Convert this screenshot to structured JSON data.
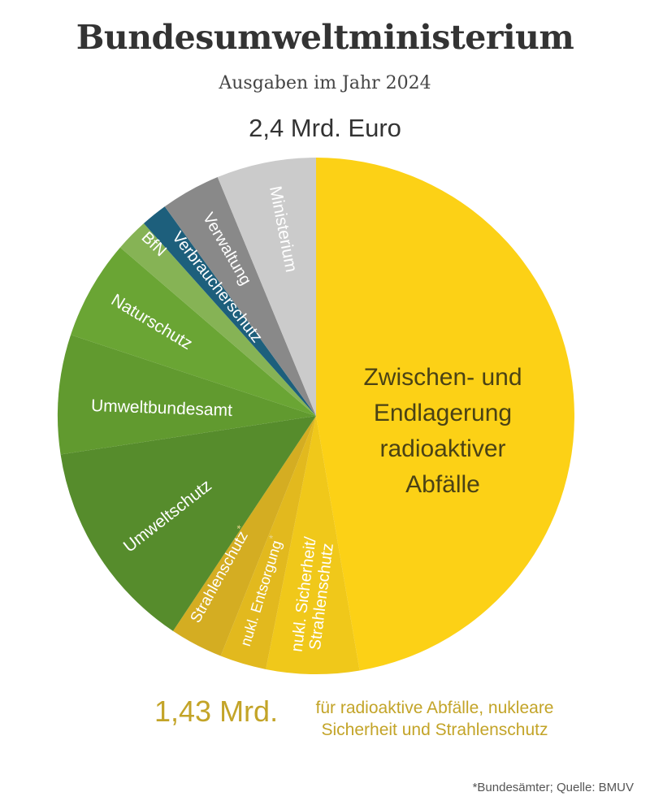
{
  "header": {
    "title": "Bundesumweltministerium",
    "subtitle": "Ausgaben im Jahr 2024",
    "total": "2,4 Mrd. Euro"
  },
  "footer": {
    "amount": "1,43 Mrd.",
    "description_line1": "für radioaktive Abfälle, nukleare",
    "description_line2": "Sicherheit und Strahlenschutz",
    "source": "*Bundesämter; Quelle: BMUV"
  },
  "labels": {
    "endlager_1": "Zwischen- und",
    "endlager_2": "Endlagerung",
    "endlager_3": "radioaktiver",
    "endlager_4": "Abfälle",
    "sicherheit_1": "nukl. Sicherheit/",
    "sicherheit_2": "Strahlenschutz",
    "entsorgung": "nukl. Entsorgung",
    "strahlenschutz": "Strahlenschutz",
    "umweltschutz": "Umweltschutz",
    "umweltbundesamt": "Umweltbundesamt",
    "naturschutz": "Naturschutz",
    "bfn": "BfN",
    "verbraucherschutz": "Verbraucherschutz",
    "verwaltung": "Verwaltung",
    "ministerium": "Ministerium",
    "asterisk": "*"
  },
  "colors": {
    "endlager": "#fcd116",
    "sicherheit": "#f0c81a",
    "entsorgung": "#e2b91e",
    "strahlenschutz": "#d4ad22",
    "umweltschutz": "#568c2c",
    "umweltbundesamt": "#619a2f",
    "naturschutz": "#6aa534",
    "bfn": "#86b355",
    "verbraucherschutz": "#1d5f7c",
    "verwaltung": "#898989",
    "ministerium": "#cbcbcb",
    "footer_accent": "#c3a428"
  },
  "chart_data": {
    "type": "pie",
    "title": "Bundesumweltministerium",
    "subtitle": "Ausgaben im Jahr 2024",
    "total_label": "2,4 Mrd. Euro",
    "total": 2.4,
    "unit": "Mrd. Euro",
    "start_angle_deg": 0,
    "direction": "clockwise",
    "slices": [
      {
        "label": "Zwischen- und Endlagerung radioaktiver Abfälle",
        "value": 1.14,
        "color": "#fcd116"
      },
      {
        "label": "nukl. Sicherheit/Strahlenschutz",
        "value": 0.14,
        "color": "#f0c81a"
      },
      {
        "label": "nukl. Entsorgung*",
        "value": 0.07,
        "color": "#e2b91e"
      },
      {
        "label": "Strahlenschutz*",
        "value": 0.08,
        "color": "#d4ad22"
      },
      {
        "label": "Umweltschutz",
        "value": 0.32,
        "color": "#568c2c"
      },
      {
        "label": "Umweltbundesamt",
        "value": 0.18,
        "color": "#619a2f"
      },
      {
        "label": "Naturschutz",
        "value": 0.15,
        "color": "#6aa534"
      },
      {
        "label": "BfN",
        "value": 0.05,
        "color": "#86b355"
      },
      {
        "label": "Verbraucherschutz",
        "value": 0.04,
        "color": "#1d5f7c"
      },
      {
        "label": "Verwaltung",
        "value": 0.09,
        "color": "#898989"
      },
      {
        "label": "Ministerium",
        "value": 0.15,
        "color": "#cbcbcb"
      }
    ],
    "annotations": [
      "1,43 Mrd. für radioaktive Abfälle, nukleare Sicherheit und Strahlenschutz",
      "*Bundesämter; Quelle: BMUV"
    ]
  }
}
